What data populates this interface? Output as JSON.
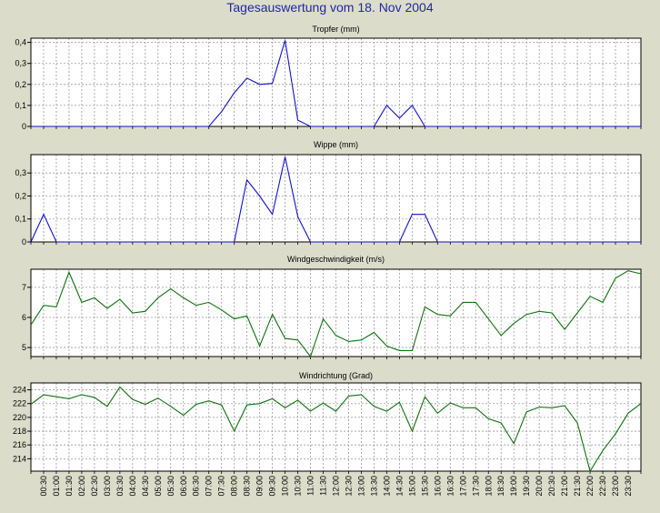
{
  "page": {
    "title": "Tagesauswertung vom 18. Nov 2004"
  },
  "time_axis": {
    "labels": [
      "00:30",
      "01:00",
      "01:30",
      "02:00",
      "02:30",
      "03:00",
      "03:30",
      "04:00",
      "04:30",
      "05:00",
      "05:30",
      "06:00",
      "06:30",
      "07:00",
      "07:30",
      "08:00",
      "08:30",
      "09:00",
      "09:30",
      "10:00",
      "10:30",
      "11:00",
      "11:30",
      "12:00",
      "12:30",
      "13:00",
      "13:30",
      "14:00",
      "14:30",
      "15:00",
      "15:30",
      "16:00",
      "16:30",
      "17:00",
      "17:30",
      "18:00",
      "18:30",
      "19:00",
      "19:30",
      "20:00",
      "20:30",
      "21:00",
      "21:30",
      "22:00",
      "22:30",
      "23:00",
      "23:30"
    ]
  },
  "colors": {
    "background": "#dcdccb",
    "plot_background": "#ffffff",
    "grid": "#9a9a9a",
    "series_blue": "#1010c8",
    "series_green": "#107010",
    "title": "#1e2a9a"
  },
  "chart_data": [
    {
      "type": "line",
      "title": "Tropfer (mm)",
      "color": "blue",
      "grid": true,
      "ylim": [
        0,
        0.42
      ],
      "yticks": [
        "0",
        "0,1",
        "0,2",
        "0,3",
        "0,4"
      ],
      "ytick_values": [
        0,
        0.1,
        0.2,
        0.3,
        0.4
      ],
      "x": [
        "00:00",
        "00:30",
        "01:00",
        "01:30",
        "02:00",
        "02:30",
        "03:00",
        "03:30",
        "04:00",
        "04:30",
        "05:00",
        "05:30",
        "06:00",
        "06:30",
        "07:00",
        "07:30",
        "08:00",
        "08:30",
        "09:00",
        "09:30",
        "10:00",
        "10:30",
        "11:00",
        "11:30",
        "12:00",
        "12:30",
        "13:00",
        "13:30",
        "14:00",
        "14:30",
        "15:00",
        "15:30",
        "16:00",
        "16:30",
        "17:00",
        "17:30",
        "18:00",
        "18:30",
        "19:00",
        "19:30",
        "20:00",
        "20:30",
        "21:00",
        "21:30",
        "22:00",
        "22:30",
        "23:00",
        "23:30",
        "24:00"
      ],
      "values": [
        0,
        0,
        0,
        0,
        0,
        0,
        0,
        0,
        0,
        0,
        0,
        0,
        0,
        0,
        0,
        0.07,
        0.16,
        0.23,
        0.2,
        0.205,
        0.41,
        0.03,
        0,
        0,
        0,
        0,
        0,
        0,
        0.1,
        0.04,
        0.1,
        0,
        0,
        0,
        0,
        0,
        0,
        0,
        0,
        0,
        0,
        0,
        0,
        0,
        0,
        0,
        0,
        0,
        0
      ]
    },
    {
      "type": "line",
      "title": "Wippe (mm)",
      "color": "blue",
      "grid": true,
      "ylim": [
        0,
        0.38
      ],
      "yticks": [
        "0",
        "0,1",
        "0,2",
        "0,3"
      ],
      "ytick_values": [
        0,
        0.1,
        0.2,
        0.3
      ],
      "x": [
        "00:00",
        "00:30",
        "01:00",
        "01:30",
        "02:00",
        "02:30",
        "03:00",
        "03:30",
        "04:00",
        "04:30",
        "05:00",
        "05:30",
        "06:00",
        "06:30",
        "07:00",
        "07:30",
        "08:00",
        "08:30",
        "09:00",
        "09:30",
        "10:00",
        "10:30",
        "11:00",
        "11:30",
        "12:00",
        "12:30",
        "13:00",
        "13:30",
        "14:00",
        "14:30",
        "15:00",
        "15:30",
        "16:00",
        "16:30",
        "17:00",
        "17:30",
        "18:00",
        "18:30",
        "19:00",
        "19:30",
        "20:00",
        "20:30",
        "21:00",
        "21:30",
        "22:00",
        "22:30",
        "23:00",
        "23:30",
        "24:00"
      ],
      "values": [
        0,
        0.12,
        0,
        0,
        0,
        0,
        0,
        0,
        0,
        0,
        0,
        0,
        0,
        0,
        0,
        0,
        0,
        0.27,
        0.2,
        0.12,
        0.37,
        0.11,
        0,
        0,
        0,
        0,
        0,
        0,
        0,
        0,
        0.12,
        0.12,
        0,
        0,
        0,
        0,
        0,
        0,
        0,
        0,
        0,
        0,
        0,
        0,
        0,
        0,
        0,
        0,
        0
      ]
    },
    {
      "type": "line",
      "title": "Windgeschwindigkeit (m/s)",
      "color": "green",
      "grid": true,
      "ylim": [
        4.7,
        7.6
      ],
      "yticks": [
        "5",
        "6",
        "7"
      ],
      "ytick_values": [
        5,
        6,
        7
      ],
      "x": [
        "00:00",
        "00:30",
        "01:00",
        "01:30",
        "02:00",
        "02:30",
        "03:00",
        "03:30",
        "04:00",
        "04:30",
        "05:00",
        "05:30",
        "06:00",
        "06:30",
        "07:00",
        "07:30",
        "08:00",
        "08:30",
        "09:00",
        "09:30",
        "10:00",
        "10:30",
        "11:00",
        "11:30",
        "12:00",
        "12:30",
        "13:00",
        "13:30",
        "14:00",
        "14:30",
        "15:00",
        "15:30",
        "16:00",
        "16:30",
        "17:00",
        "17:30",
        "18:00",
        "18:30",
        "19:00",
        "19:30",
        "20:00",
        "20:30",
        "21:00",
        "21:30",
        "22:00",
        "22:30",
        "23:00",
        "23:30",
        "24:00"
      ],
      "values": [
        5.75,
        6.4,
        6.35,
        7.5,
        6.5,
        6.65,
        6.3,
        6.6,
        6.15,
        6.2,
        6.65,
        6.95,
        6.65,
        6.4,
        6.5,
        6.25,
        5.95,
        6.05,
        5.05,
        6.1,
        5.3,
        5.25,
        4.7,
        5.95,
        5.4,
        5.2,
        5.25,
        5.5,
        5.05,
        4.9,
        4.9,
        6.35,
        6.1,
        6.05,
        6.5,
        6.5,
        5.95,
        5.4,
        5.8,
        6.1,
        6.2,
        6.15,
        5.6,
        6.15,
        6.7,
        6.5,
        7.3,
        7.55,
        7.45
      ]
    },
    {
      "type": "line",
      "title": "Windrichtung (Grad)",
      "color": "green",
      "grid": true,
      "ylim": [
        212.2,
        225.0
      ],
      "yticks": [
        "214",
        "216",
        "218",
        "220",
        "222",
        "224"
      ],
      "ytick_values": [
        214,
        216,
        218,
        220,
        222,
        224
      ],
      "x": [
        "00:00",
        "00:30",
        "01:00",
        "01:30",
        "02:00",
        "02:30",
        "03:00",
        "03:30",
        "04:00",
        "04:30",
        "05:00",
        "05:30",
        "06:00",
        "06:30",
        "07:00",
        "07:30",
        "08:00",
        "08:30",
        "09:00",
        "09:30",
        "10:00",
        "10:30",
        "11:00",
        "11:30",
        "12:00",
        "12:30",
        "13:00",
        "13:30",
        "14:00",
        "14:30",
        "15:00",
        "15:30",
        "16:00",
        "16:30",
        "17:00",
        "17:30",
        "18:00",
        "18:30",
        "19:00",
        "19:30",
        "20:00",
        "20:30",
        "21:00",
        "21:30",
        "22:00",
        "22:30",
        "23:00",
        "23:30",
        "24:00"
      ],
      "values": [
        221.9,
        223.3,
        223.0,
        222.7,
        223.3,
        222.9,
        221.6,
        224.4,
        222.6,
        221.9,
        222.8,
        221.6,
        220.3,
        221.9,
        222.4,
        221.8,
        218.0,
        221.8,
        222.0,
        222.7,
        221.4,
        222.5,
        220.9,
        222.1,
        220.9,
        223.1,
        223.3,
        221.6,
        220.9,
        222.2,
        218.0,
        223.0,
        220.6,
        222.1,
        221.4,
        221.4,
        219.8,
        219.2,
        216.2,
        220.8,
        221.5,
        221.4,
        221.7,
        219.2,
        212.2,
        215.2,
        217.6,
        220.6,
        222.0
      ]
    }
  ]
}
